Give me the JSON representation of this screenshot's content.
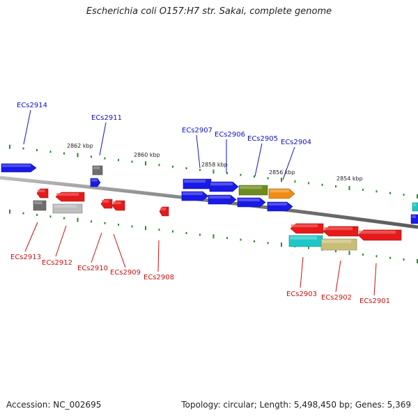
{
  "title": "Escherichia coli O157:H7 str. Sakai, complete genome",
  "footer": {
    "accession": "Accession: NC_002695",
    "summary": "Topology: circular; Length: 5,498,450 bp; Genes: 5,369"
  },
  "scale_labels": [
    "2862 kbp",
    "2860 kbp",
    "2858 kbp",
    "2856 kbp",
    "2854 kbp"
  ],
  "gene_labels": {
    "forward": [
      "ECs2914",
      "ECs2911",
      "ECs2907",
      "ECs2906",
      "ECs2905",
      "ECs2904"
    ],
    "reverse": [
      "ECs2913",
      "ECs2912",
      "ECs2910",
      "ECs2909",
      "ECs2908",
      "ECs2903",
      "ECs2902",
      "ECs2901"
    ]
  },
  "colors": {
    "forward_label": "#1010c8",
    "reverse_label": "#c81010",
    "blue": "#1a1ae6",
    "red": "#e61a1a",
    "gray": "#6e6e6e",
    "lightgray": "#bdbdbd",
    "olive": "#6e8c1e",
    "orange": "#f08c14",
    "cyan": "#1ec8c8",
    "khaki": "#c8be78",
    "tick": "#2a8a2a",
    "backbone": "#888888"
  }
}
